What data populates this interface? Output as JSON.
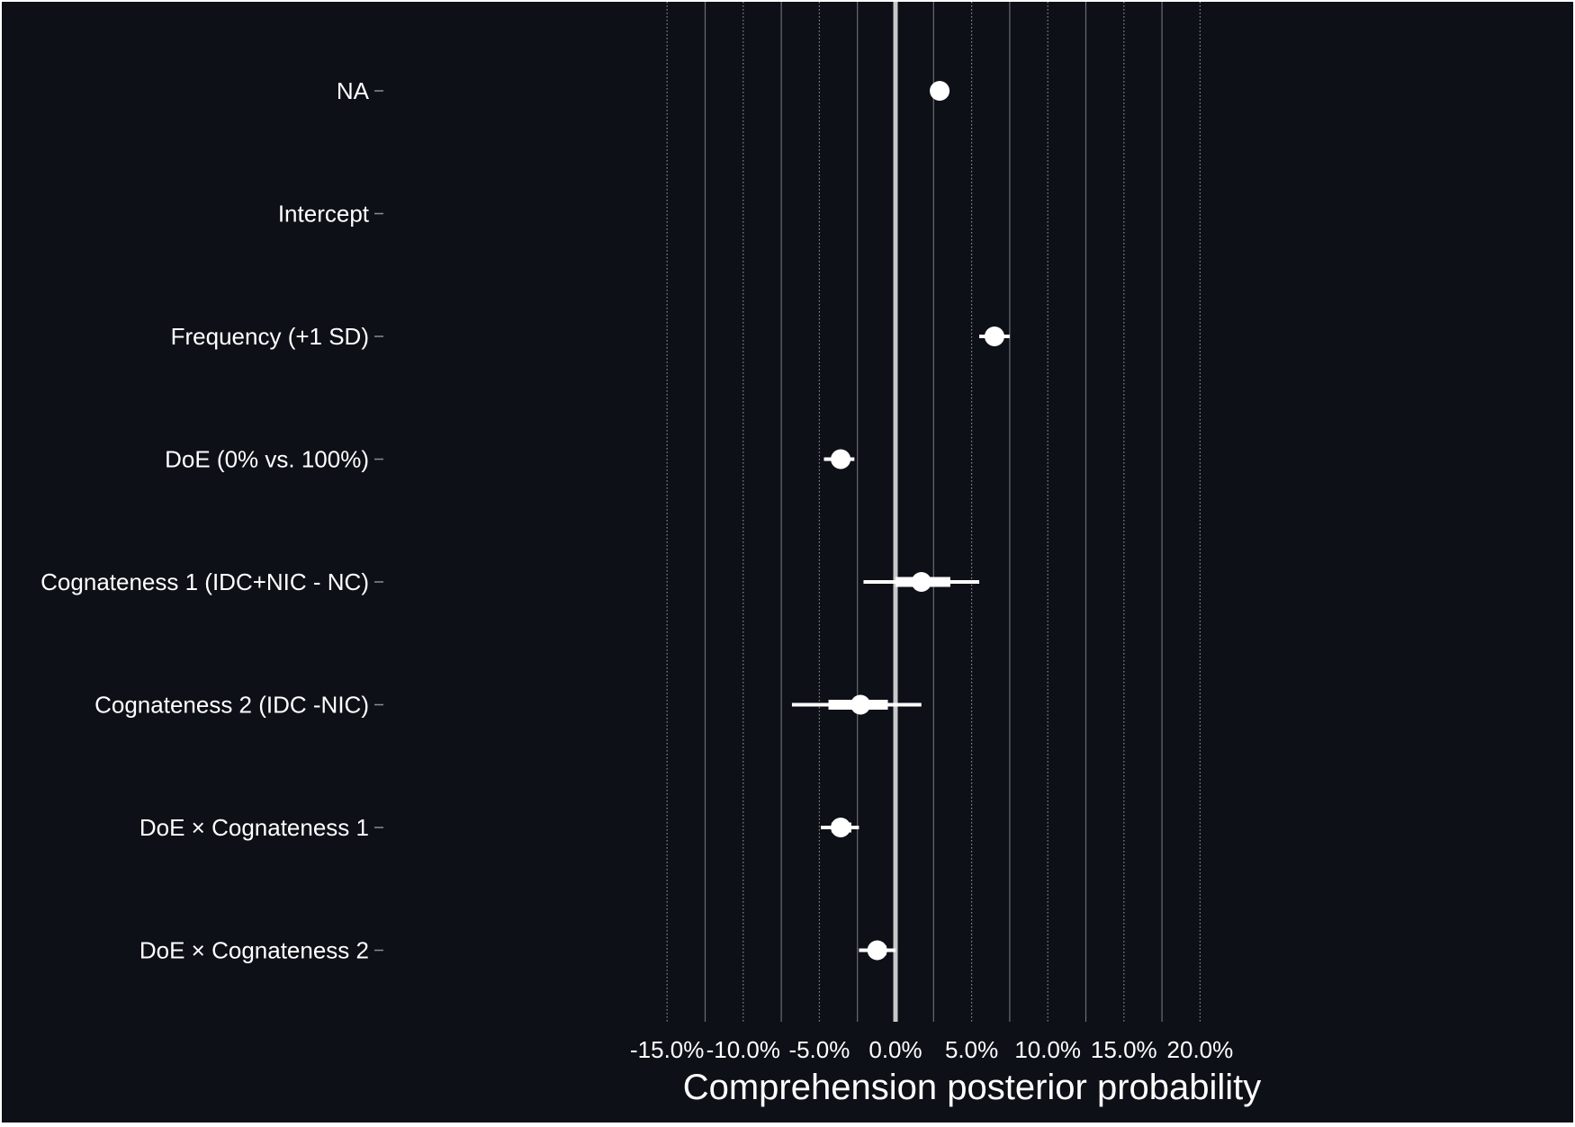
{
  "chart_data": {
    "type": "forest",
    "title": "",
    "xlabel": "Comprehension posterior probability",
    "ylabel": "",
    "xlim": [
      -0.152,
      0.2
    ],
    "x_ticks": [
      -0.15,
      -0.1,
      -0.05,
      0.0,
      0.05,
      0.1,
      0.15,
      0.2
    ],
    "x_tick_labels": [
      "-15.0%",
      "-10.0%",
      "-5.0%",
      "0.0%",
      "5.0%",
      "10.0%",
      "15.0%",
      "20.0%"
    ],
    "reference_line": 0.0,
    "grid": "vertical",
    "categories": [
      "NA",
      "Intercept",
      "Frequency (+1 SD)",
      "DoE (0% vs. 100%)",
      "Cognateness 1 (IDC+NIC - NC)",
      "Cognateness 2 (IDC -NIC)",
      "DoE × Cognateness 1",
      "DoE × Cognateness 2"
    ],
    "estimates": [
      {
        "label": "NA",
        "mean": 0.029,
        "inner": [
          0.029,
          0.029
        ],
        "outer": [
          0.029,
          0.029
        ]
      },
      {
        "label": "Intercept",
        "mean": null,
        "inner": null,
        "outer": null
      },
      {
        "label": "Frequency (+1 SD)",
        "mean": 0.065,
        "inner": [
          0.06,
          0.07
        ],
        "outer": [
          0.055,
          0.075
        ]
      },
      {
        "label": "DoE (0% vs. 100%)",
        "mean": -0.036,
        "inner": [
          -0.041,
          -0.031
        ],
        "outer": [
          -0.047,
          -0.027
        ]
      },
      {
        "label": "Cognateness 1 (IDC+NIC - NC)",
        "mean": 0.017,
        "inner": [
          0.0,
          0.036
        ],
        "outer": [
          -0.021,
          0.055
        ]
      },
      {
        "label": "Cognateness 2 (IDC -NIC)",
        "mean": -0.023,
        "inner": [
          -0.044,
          -0.005
        ],
        "outer": [
          -0.068,
          0.017
        ]
      },
      {
        "label": "DoE × Cognateness 1",
        "mean": -0.036,
        "inner": [
          -0.042,
          -0.029
        ],
        "outer": [
          -0.049,
          -0.024
        ]
      },
      {
        "label": "DoE × Cognateness 2",
        "mean": -0.012,
        "inner": [
          -0.017,
          -0.006
        ],
        "outer": [
          -0.024,
          0.0
        ]
      }
    ]
  }
}
